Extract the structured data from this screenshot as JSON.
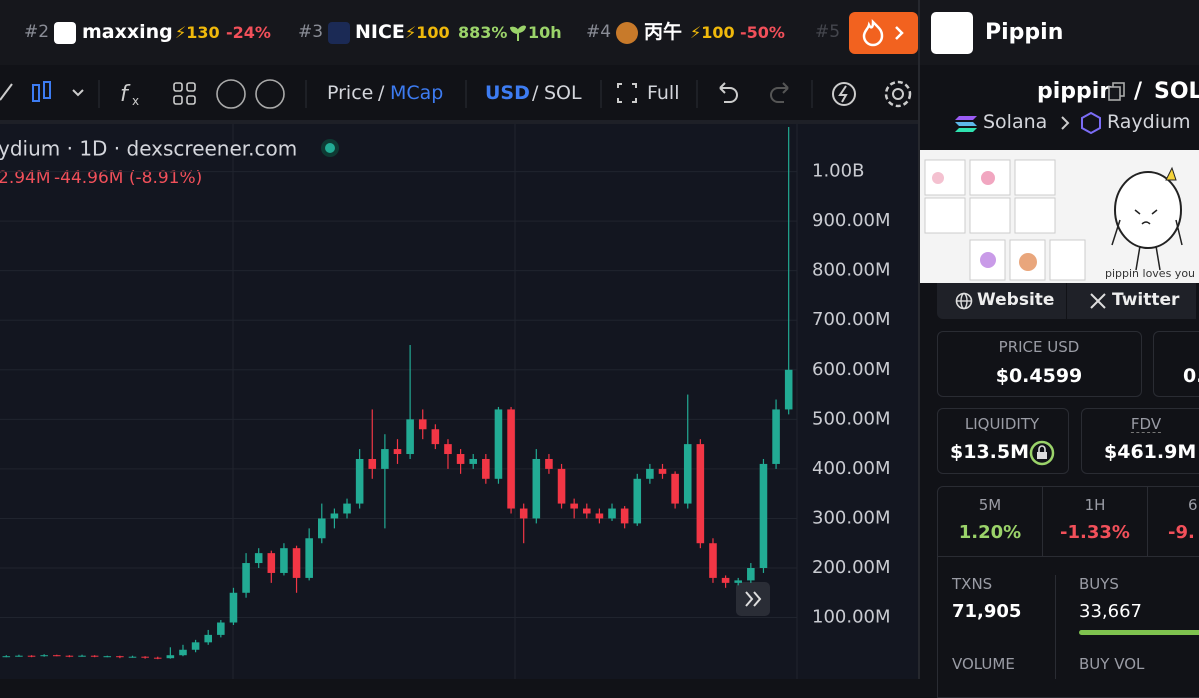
{
  "top_bar": {
    "items": [
      {
        "rank": "#2",
        "name": "maxxing",
        "boost": "⚡130",
        "change": "-24%"
      },
      {
        "rank": "#3",
        "name": "NICE",
        "boost": "⚡100",
        "change": "883%",
        "age": "10h"
      },
      {
        "rank": "#4",
        "name": "丙午",
        "boost": "⚡100",
        "change": "-50%"
      },
      {
        "rank": "#5"
      }
    ]
  },
  "toolbar": {
    "price": "Price",
    "sep1": "/",
    "mcap": "MCap",
    "usd": "USD",
    "sep2": "/",
    "sol": "SOL",
    "full": "Full"
  },
  "chart_data": {
    "type": "candlestick",
    "legend": "ydium · 1D · dexscreener.com",
    "ohlc": "2.94M",
    "change": "-44.96M (-8.91%)",
    "up_color": "#22ab94",
    "down_color": "#f23645",
    "grid": true,
    "ylim": [
      -24000000,
      1096000000
    ],
    "yticks": [
      {
        "value": 100000000,
        "label": "100.00M"
      },
      {
        "value": 200000000,
        "label": "200.00M"
      },
      {
        "value": 300000000,
        "label": "300.00M"
      },
      {
        "value": 400000000,
        "label": "400.00M"
      },
      {
        "value": 500000000,
        "label": "500.00M"
      },
      {
        "value": 600000000,
        "label": "600.00M"
      },
      {
        "value": 700000000,
        "label": "700.00M"
      },
      {
        "value": 800000000,
        "label": "800.00M"
      },
      {
        "value": 900000000,
        "label": "900.00M"
      },
      {
        "value": 1000000000,
        "label": "1.00B"
      }
    ],
    "candles": [
      [
        21000000,
        24000000,
        20000000,
        22000000
      ],
      [
        22000000,
        25000000,
        21000000,
        23000000
      ],
      [
        23000000,
        24000000,
        20000000,
        22000000
      ],
      [
        22000000,
        26000000,
        21000000,
        24000000
      ],
      [
        24000000,
        25000000,
        22000000,
        23000000
      ],
      [
        23000000,
        24000000,
        20000000,
        22000000
      ],
      [
        22000000,
        25000000,
        21000000,
        23000000
      ],
      [
        23000000,
        24000000,
        20000000,
        21000000
      ],
      [
        21000000,
        23000000,
        20000000,
        22000000
      ],
      [
        22000000,
        23000000,
        18000000,
        20000000
      ],
      [
        20000000,
        23000000,
        19000000,
        21000000
      ],
      [
        21000000,
        22000000,
        17000000,
        19000000
      ],
      [
        19000000,
        21000000,
        16000000,
        18000000
      ],
      [
        18000000,
        40000000,
        17000000,
        24000000
      ],
      [
        24000000,
        45000000,
        22000000,
        35000000
      ],
      [
        35000000,
        55000000,
        30000000,
        50000000
      ],
      [
        50000000,
        75000000,
        45000000,
        65000000
      ],
      [
        65000000,
        95000000,
        60000000,
        90000000
      ],
      [
        90000000,
        160000000,
        85000000,
        150000000
      ],
      [
        150000000,
        230000000,
        140000000,
        210000000
      ],
      [
        210000000,
        240000000,
        200000000,
        230000000
      ],
      [
        230000000,
        235000000,
        170000000,
        190000000
      ],
      [
        190000000,
        250000000,
        185000000,
        240000000
      ],
      [
        240000000,
        245000000,
        150000000,
        180000000
      ],
      [
        180000000,
        280000000,
        175000000,
        260000000
      ],
      [
        260000000,
        330000000,
        250000000,
        300000000
      ],
      [
        300000000,
        320000000,
        280000000,
        310000000
      ],
      [
        310000000,
        340000000,
        300000000,
        330000000
      ],
      [
        330000000,
        440000000,
        320000000,
        420000000
      ],
      [
        420000000,
        520000000,
        380000000,
        400000000
      ],
      [
        400000000,
        470000000,
        280000000,
        440000000
      ],
      [
        440000000,
        460000000,
        410000000,
        430000000
      ],
      [
        430000000,
        650000000,
        420000000,
        500000000
      ],
      [
        500000000,
        520000000,
        460000000,
        480000000
      ],
      [
        480000000,
        490000000,
        440000000,
        450000000
      ],
      [
        450000000,
        460000000,
        400000000,
        430000000
      ],
      [
        430000000,
        440000000,
        390000000,
        410000000
      ],
      [
        410000000,
        430000000,
        400000000,
        420000000
      ],
      [
        420000000,
        430000000,
        370000000,
        380000000
      ],
      [
        380000000,
        525000000,
        370000000,
        520000000
      ],
      [
        520000000,
        525000000,
        310000000,
        320000000
      ],
      [
        320000000,
        330000000,
        250000000,
        300000000
      ],
      [
        300000000,
        440000000,
        290000000,
        420000000
      ],
      [
        420000000,
        430000000,
        390000000,
        400000000
      ],
      [
        400000000,
        410000000,
        320000000,
        330000000
      ],
      [
        330000000,
        340000000,
        300000000,
        320000000
      ],
      [
        320000000,
        330000000,
        300000000,
        310000000
      ],
      [
        310000000,
        320000000,
        290000000,
        300000000
      ],
      [
        300000000,
        330000000,
        295000000,
        320000000
      ],
      [
        320000000,
        325000000,
        280000000,
        290000000
      ],
      [
        290000000,
        390000000,
        285000000,
        380000000
      ],
      [
        380000000,
        410000000,
        370000000,
        400000000
      ],
      [
        400000000,
        410000000,
        380000000,
        390000000
      ],
      [
        390000000,
        395000000,
        320000000,
        330000000
      ],
      [
        330000000,
        550000000,
        320000000,
        450000000
      ],
      [
        450000000,
        460000000,
        240000000,
        250000000
      ],
      [
        250000000,
        260000000,
        170000000,
        180000000
      ],
      [
        180000000,
        185000000,
        160000000,
        170000000
      ],
      [
        170000000,
        180000000,
        165000000,
        175000000
      ],
      [
        175000000,
        210000000,
        170000000,
        200000000
      ],
      [
        200000000,
        420000000,
        190000000,
        410000000
      ],
      [
        410000000,
        540000000,
        400000000,
        520000000
      ],
      [
        520000000,
        1090000000,
        510000000,
        600000000
      ]
    ]
  },
  "panel": {
    "name": "Pippin",
    "pair": {
      "base": "pippin",
      "sep": "/",
      "quote": "SOL"
    },
    "chain": "Solana",
    "dex": "Raydium",
    "image_caption": "pippin loves you",
    "links": [
      "Website",
      "Twitter"
    ],
    "price_usd": {
      "label": "PRICE USD",
      "value": "$0.4599"
    },
    "price_sol": {
      "value": "0."
    },
    "liquidity": {
      "label": "LIQUIDITY",
      "value": "$13.5M"
    },
    "fdv": {
      "label": "FDV",
      "value": "$461.9M"
    },
    "changes": [
      {
        "label": "5M",
        "value": "1.20%"
      },
      {
        "label": "1H",
        "value": "-1.33%"
      },
      {
        "label": "6",
        "value": "-9."
      }
    ],
    "txns": {
      "label": "TXNS",
      "value": "71,905"
    },
    "buys": {
      "label": "BUYS",
      "value": "33,667"
    },
    "volume": {
      "label": "VOLUME"
    },
    "buy_vol": {
      "label": "BUY VOL"
    }
  }
}
